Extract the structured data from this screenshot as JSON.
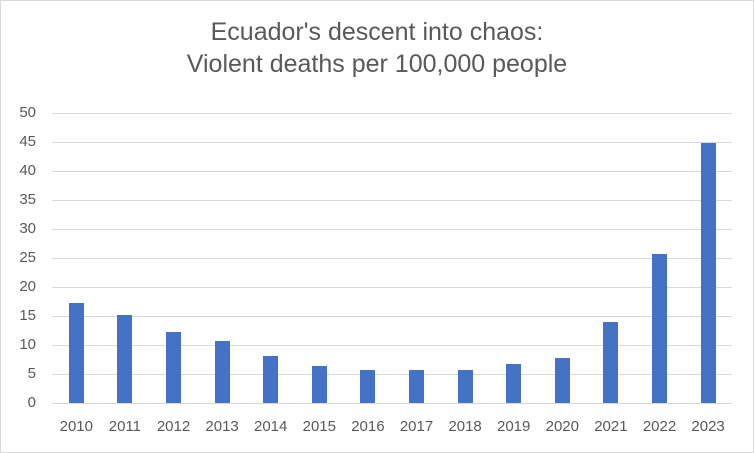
{
  "chart_data": {
    "type": "bar",
    "title": "Ecuador's descent into chaos: Violent deaths per 100,000 people",
    "title_lines": [
      "Ecuador's descent into chaos:",
      "Violent deaths per 100,000 people"
    ],
    "xlabel": "",
    "ylabel": "",
    "categories": [
      "2010",
      "2011",
      "2012",
      "2013",
      "2014",
      "2015",
      "2016",
      "2017",
      "2018",
      "2019",
      "2020",
      "2021",
      "2022",
      "2023"
    ],
    "values": [
      17.3,
      15.2,
      12.3,
      10.7,
      8.1,
      6.4,
      5.7,
      5.7,
      5.7,
      6.8,
      7.7,
      14.0,
      25.7,
      44.8
    ],
    "ylim": [
      0,
      50
    ],
    "yticks": [
      "0",
      "5",
      "10",
      "15",
      "20",
      "25",
      "30",
      "35",
      "40",
      "45",
      "50"
    ],
    "grid": true,
    "legend": null,
    "bar_color": "#4472c4"
  }
}
